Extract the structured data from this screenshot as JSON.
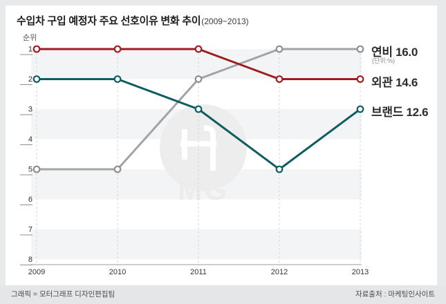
{
  "title": {
    "main": "수입차 구입 예정자 주요 선호이유 변화 추이",
    "period": "(2009~2013)"
  },
  "axis": {
    "y_label": "순위",
    "ranks": [
      "1",
      "2",
      "3",
      "4",
      "5",
      "6",
      "7",
      "8"
    ],
    "years": [
      "2009",
      "2010",
      "2011",
      "2012",
      "2013"
    ]
  },
  "right_labels": [
    {
      "text": "연비 16.0",
      "note": "(단위:%)"
    },
    {
      "text": "외관 14.6"
    },
    {
      "text": "브랜드 12.6"
    }
  ],
  "watermark": {
    "text": "MG",
    "icon": "motorgraph-logo"
  },
  "footer": {
    "credit": "그래픽 = 모터그래프 디자인편집팀",
    "source": "자료출처 : 마케팅인사이트"
  },
  "colors": {
    "band": "#f3f4f6",
    "grid_dash": "#d6d6d6",
    "axis_line": "#9c9c9c",
    "rank_text": "#2e2e2e",
    "tick": "#8f8f8f",
    "watermark_fill": "#ededee",
    "watermark_glyph": "#ffffff"
  },
  "chart_data": {
    "type": "line",
    "title": "수입차 구입 예정자 주요 선호이유 변화 추이 (2009~2013)",
    "xlabel": "",
    "ylabel": "순위",
    "x": [
      2009,
      2010,
      2011,
      2012,
      2013
    ],
    "y_axis": {
      "range": [
        1,
        8
      ],
      "inverted": true,
      "unit_note": "단위:%"
    },
    "legend_position": "right-of-line-end",
    "grid": "vertical-dashed",
    "series": [
      {
        "name": "연비",
        "final_value_pct": 16.0,
        "color": "#a2a3a5",
        "marker_color": "#8e8f91",
        "ranks": [
          5,
          5,
          2,
          1,
          1
        ]
      },
      {
        "name": "외관",
        "final_value_pct": 14.6,
        "color": "#9e1c20",
        "marker_color": "#9e1c20",
        "ranks": [
          1,
          1,
          1,
          2,
          2
        ]
      },
      {
        "name": "브랜드",
        "final_value_pct": 12.6,
        "color": "#0e5d62",
        "marker_color": "#0e5d62",
        "ranks": [
          2,
          2,
          3,
          5,
          3
        ]
      }
    ]
  }
}
